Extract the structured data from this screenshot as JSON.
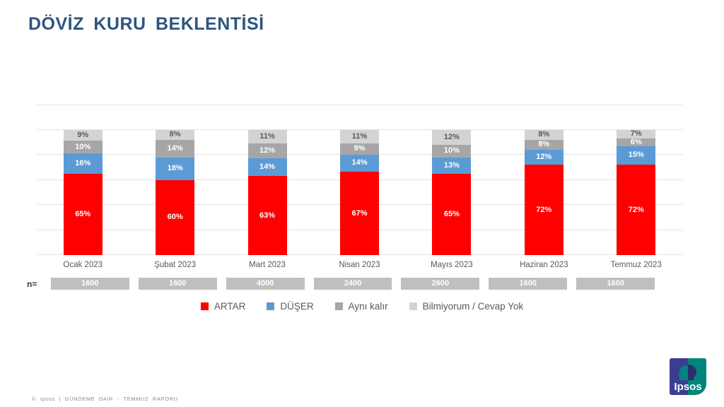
{
  "title": "DÖVİZ KURU BEKLENTİSİ",
  "colors": {
    "title_text": "#2F557F",
    "axis_text": "#595959",
    "n_cell_bg": "#BFBFBF",
    "artar": "#FE0000",
    "duser": "#5B9BD5",
    "ayni_kalir": "#A6A6A6",
    "bilmiyorum": "#D3D3D3",
    "logo_left": "#3B3E90",
    "logo_right": "#00857C"
  },
  "chart_data": {
    "type": "bar",
    "stacked": true,
    "title": "DÖVİZ KURU BEKLENTİSİ",
    "categories": [
      "Ocak 2023",
      "Şubat 2023",
      "Mart 2023",
      "Nisan 2023",
      "Mayıs 2023",
      "Haziran 2023",
      "Temmuz 2023"
    ],
    "series": [
      {
        "name": "ARTAR",
        "color": "#FE0000",
        "label_color": "#FFFFFF",
        "values": [
          65,
          60,
          63,
          67,
          65,
          72,
          72
        ]
      },
      {
        "name": "DÜŞER",
        "color": "#5B9BD5",
        "label_color": "#FFFFFF",
        "values": [
          16,
          18,
          14,
          14,
          13,
          12,
          15
        ]
      },
      {
        "name": "Aynı kalır",
        "color": "#A6A6A6",
        "label_color": "#FFFFFF",
        "values": [
          10,
          14,
          12,
          9,
          10,
          8,
          6
        ]
      },
      {
        "name": "Bilmiyorum / Cevap Yok",
        "color": "#D3D3D3",
        "label_color": "#595959",
        "values": [
          9,
          8,
          11,
          11,
          12,
          8,
          7
        ]
      }
    ],
    "value_suffix": "%",
    "ylim": [
      0,
      120
    ],
    "gridline_step": 20,
    "grid": true,
    "legend_position": "bottom",
    "xlabel": "",
    "ylabel": "",
    "n_label": "n=",
    "n_values": [
      "1600",
      "1600",
      "4000",
      "2400",
      "2600",
      "1600",
      "1600"
    ]
  },
  "footer": {
    "text": "© Ipsos | GÜNDEME DAİR - TEMMUZ RAPORU"
  },
  "logo": {
    "text": "Ipsos"
  }
}
